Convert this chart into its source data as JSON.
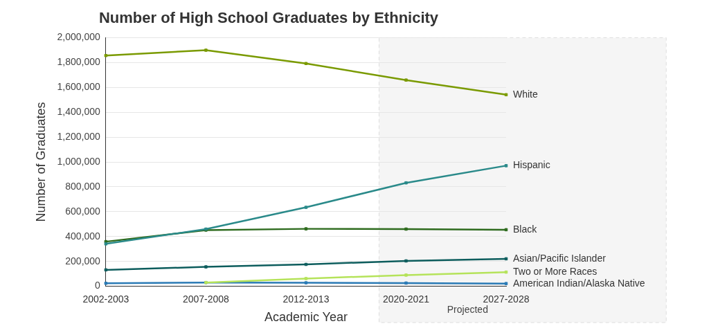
{
  "chart_data": {
    "type": "line",
    "title": "Number of High School Graduates by Ethnicity",
    "xlabel": "Academic Year",
    "ylabel": "Number of Graduates",
    "categories": [
      "2002-2003",
      "2007-2008",
      "2012-2013",
      "2020-2021",
      "2027-2028"
    ],
    "series": [
      {
        "name": "White",
        "color": "#7a9a01",
        "values": [
          1856000,
          1899000,
          1792000,
          1659000,
          1541000
        ]
      },
      {
        "name": "Hispanic",
        "color": "#2a8a8a",
        "values": [
          341000,
          460000,
          635000,
          832000,
          970000
        ]
      },
      {
        "name": "Black",
        "color": "#2e6b1e",
        "values": [
          359000,
          452000,
          462000,
          460000,
          455000
        ]
      },
      {
        "name": "Asian/Pacific Islander",
        "color": "#0d5d5d",
        "values": [
          132000,
          156000,
          176000,
          204000,
          221000
        ]
      },
      {
        "name": "Two or More Races",
        "color": "#b5e35a",
        "values": [
          null,
          30000,
          62000,
          90000,
          114000
        ]
      },
      {
        "name": "American Indian/Alaska Native",
        "color": "#2a7ab5",
        "values": [
          24000,
          30000,
          28000,
          26000,
          22000
        ]
      }
    ],
    "ylim": [
      0,
      2000000
    ],
    "yticks": [
      0,
      {
        "value": 200000,
        "label": "200,000"
      },
      {
        "value": 400000,
        "label": "400,000"
      },
      {
        "value": 600000,
        "label": "600,000"
      },
      {
        "value": 800000,
        "label": "800,000"
      },
      {
        "value": 1000000,
        "label": "1,000,000"
      },
      {
        "value": 1200000,
        "label": "1,200,000"
      },
      {
        "value": 1400000,
        "label": "1,400,000"
      },
      {
        "value": 1600000,
        "label": "1,600,000"
      },
      {
        "value": 1800000,
        "label": "1,800,000"
      },
      {
        "value": 2000000,
        "label": "2,000,000"
      }
    ],
    "grid": "y",
    "legend": false,
    "marker": "square",
    "line_style": "solid",
    "bands": [
      {
        "axis": "x",
        "from": "2020-2021",
        "to": "2027-2028",
        "label": "Projected",
        "color": "#f5f5f5"
      }
    ]
  }
}
